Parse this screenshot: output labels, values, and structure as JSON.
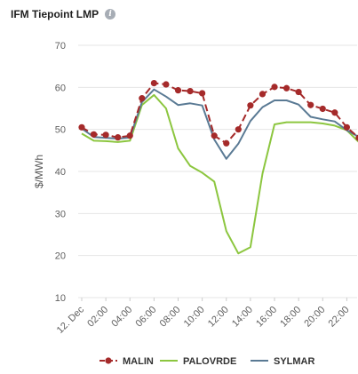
{
  "header": {
    "title": "IFM Tiepoint LMP",
    "info_icon": "info-icon"
  },
  "chart_data": {
    "type": "line",
    "title": "IFM Tiepoint LMP",
    "xlabel": "",
    "ylabel": "$/MWh",
    "ylim": [
      10,
      70
    ],
    "yticks": [
      10,
      20,
      30,
      40,
      50,
      60,
      70
    ],
    "grid": true,
    "legend_position": "bottom",
    "x": [
      "00:00",
      "01:00",
      "02:00",
      "03:00",
      "04:00",
      "05:00",
      "06:00",
      "07:00",
      "08:00",
      "09:00",
      "10:00",
      "11:00",
      "12:00",
      "13:00",
      "14:00",
      "15:00",
      "16:00",
      "17:00",
      "18:00",
      "19:00",
      "20:00",
      "21:00",
      "22:00",
      "23:00"
    ],
    "xtick_labels": [
      "12. Dec",
      "02:00",
      "04:00",
      "06:00",
      "08:00",
      "10:00",
      "12:00",
      "14:00",
      "16:00",
      "18:00",
      "20:00",
      "22:00"
    ],
    "series": [
      {
        "name": "MALIN",
        "color": "#a52a2a",
        "dash": true,
        "markers": true,
        "values": [
          50.5,
          48.8,
          48.7,
          48.1,
          48.5,
          57.4,
          61.0,
          60.7,
          59.3,
          59.1,
          58.6,
          48.5,
          46.7,
          50.0,
          55.7,
          58.4,
          60.1,
          59.8,
          58.9,
          55.8,
          54.9,
          54.0,
          50.5,
          48.0
        ]
      },
      {
        "name": "PALOVRDE",
        "color": "#8cc63f",
        "dash": false,
        "markers": false,
        "values": [
          49.0,
          47.3,
          47.2,
          47.0,
          47.3,
          55.8,
          58.2,
          55.0,
          45.5,
          41.3,
          39.7,
          37.6,
          25.8,
          20.5,
          22.0,
          39.5,
          51.2,
          51.7,
          51.7,
          51.7,
          51.4,
          50.9,
          49.8,
          47.0
        ]
      },
      {
        "name": "SYLMAR",
        "color": "#5a7a94",
        "dash": false,
        "markers": false,
        "values": [
          50.2,
          48.2,
          48.0,
          47.8,
          48.1,
          56.5,
          59.5,
          57.8,
          55.8,
          56.2,
          55.7,
          47.6,
          43.0,
          46.6,
          52.0,
          55.3,
          56.9,
          56.9,
          55.9,
          53.0,
          52.4,
          51.9,
          49.8,
          48.2
        ]
      }
    ]
  }
}
